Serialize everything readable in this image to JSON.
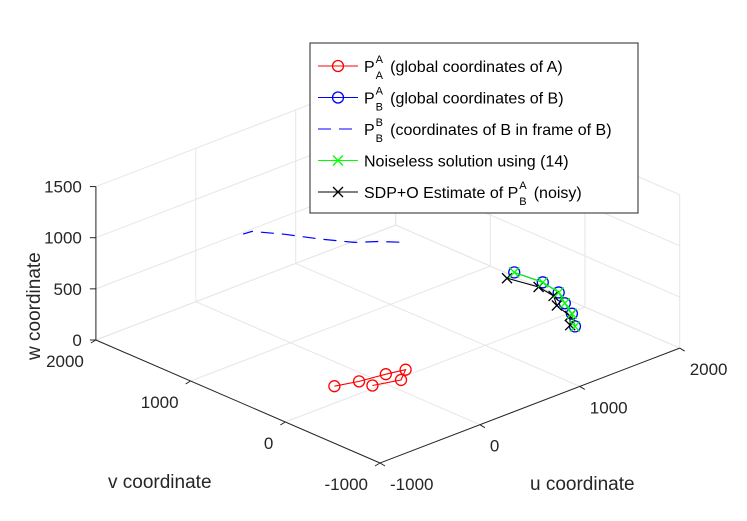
{
  "chart_data": {
    "type": "line3d",
    "title": "",
    "xlabel": "u coordinate",
    "ylabel": "v coordinate",
    "zlabel": "w coordinate",
    "u_ticks": [
      "-1000",
      "0",
      "1000",
      "2000"
    ],
    "v_ticks": [
      "-1000",
      "0",
      "1000",
      "2000"
    ],
    "w_ticks": [
      "0",
      "500",
      "1000",
      "1500"
    ],
    "ulim": [
      -1000,
      2000
    ],
    "vlim": [
      -1000,
      2000
    ],
    "wlim": [
      0,
      1500
    ],
    "grid": true,
    "legend_position": "top-right",
    "series": [
      {
        "key": "pa",
        "name": "P",
        "sup": "A",
        "sub": "A",
        "suffix": " (global coordinates of A)",
        "color": "#ff0000",
        "marker": "circle",
        "linestyle": "solid",
        "points": [
          [
            -300,
            220,
            0
          ],
          [
            -110,
            160,
            0
          ],
          [
            120,
            120,
            0
          ],
          [
            280,
            80,
            0
          ],
          [
            130,
            -30,
            0
          ],
          [
            -90,
            40,
            0
          ]
        ]
      },
      {
        "key": "pb",
        "name": "P",
        "sup": "A",
        "sub": "B",
        "suffix": " (global coordinates of B)",
        "color": "#0000ff",
        "marker": "circle",
        "linestyle": "solid",
        "points": [
          [
            1710,
            -200,
            0
          ],
          [
            1850,
            -20,
            0
          ],
          [
            1940,
            150,
            0
          ],
          [
            2040,
            320,
            0
          ],
          [
            2080,
            530,
            0
          ],
          [
            2050,
            800,
            0
          ]
        ]
      },
      {
        "key": "pbb",
        "name": "P",
        "sup": "B",
        "sub": "B",
        "suffix": " (coordinates of B in frame of B)",
        "color": "#0000ff",
        "marker": "none",
        "linestyle": "dashed",
        "points": [
          [
            1810,
            1760,
            0
          ],
          [
            1710,
            1870,
            0
          ],
          [
            1570,
            1980,
            0
          ],
          [
            1430,
            2190,
            0
          ],
          [
            1300,
            2430,
            0
          ],
          [
            1160,
            2630,
            0
          ],
          [
            1080,
            2640,
            0
          ]
        ]
      },
      {
        "key": "noiseless",
        "name": "Noiseless solution using (14)",
        "sup": "",
        "sub": "",
        "suffix": "",
        "color": "#00ff00",
        "marker": "x",
        "linestyle": "solid",
        "points": [
          [
            1710,
            -200,
            0
          ],
          [
            1850,
            -20,
            0
          ],
          [
            1940,
            150,
            0
          ],
          [
            2040,
            320,
            0
          ],
          [
            2080,
            530,
            0
          ],
          [
            2050,
            800,
            0
          ]
        ]
      },
      {
        "key": "sdp",
        "name": "SDP+O Estimate of P",
        "sup": "A",
        "sub": "B",
        "suffix": " (noisy)",
        "color": "#000000",
        "marker": "x",
        "linestyle": "solid",
        "points": [
          [
            1700,
            -160,
            0
          ],
          [
            1810,
            -40,
            0
          ],
          [
            1870,
            160,
            0
          ],
          [
            1970,
            300,
            0
          ],
          [
            2000,
            490,
            0
          ],
          [
            1940,
            760,
            0
          ]
        ]
      }
    ]
  }
}
